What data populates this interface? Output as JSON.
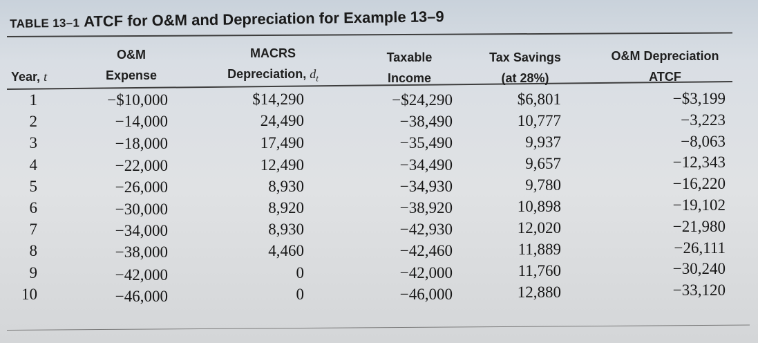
{
  "table": {
    "label": "TABLE 13–1",
    "title": "ATCF for O&M and Depreciation for Example 13–9",
    "headers": {
      "year": {
        "line1": "Year, ",
        "var": "t"
      },
      "om": {
        "line1": "O&M",
        "line2": "Expense"
      },
      "macrs": {
        "line1": "MACRS",
        "line2": "Depreciation, ",
        "var": "d",
        "sub": "t"
      },
      "taxable": {
        "line1": "Taxable",
        "line2": "Income"
      },
      "taxsav": {
        "line1": "Tax Savings",
        "line2": "(at 28%)"
      },
      "atcf": {
        "line1": "O&M Depreciation",
        "line2": "ATCF"
      }
    },
    "rows": [
      {
        "year": "1",
        "om": "−$10,000",
        "dep": "$14,290",
        "ti": "−$24,290",
        "ts": "$6,801",
        "atcf": "−$3,199"
      },
      {
        "year": "2",
        "om": "−14,000",
        "dep": "24,490",
        "ti": "−38,490",
        "ts": "10,777",
        "atcf": "−3,223"
      },
      {
        "year": "3",
        "om": "−18,000",
        "dep": "17,490",
        "ti": "−35,490",
        "ts": "9,937",
        "atcf": "−8,063"
      },
      {
        "year": "4",
        "om": "−22,000",
        "dep": "12,490",
        "ti": "−34,490",
        "ts": "9,657",
        "atcf": "−12,343"
      },
      {
        "year": "5",
        "om": "−26,000",
        "dep": "8,930",
        "ti": "−34,930",
        "ts": "9,780",
        "atcf": "−16,220"
      },
      {
        "year": "6",
        "om": "−30,000",
        "dep": "8,920",
        "ti": "−38,920",
        "ts": "10,898",
        "atcf": "−19,102"
      },
      {
        "year": "7",
        "om": "−34,000",
        "dep": "8,930",
        "ti": "−42,930",
        "ts": "12,020",
        "atcf": "−21,980"
      },
      {
        "year": "8",
        "om": "−38,000",
        "dep": "4,460",
        "ti": "−42,460",
        "ts": "11,889",
        "atcf": "−26,111"
      },
      {
        "year": "9",
        "om": "−42,000",
        "dep": "0",
        "ti": "−42,000",
        "ts": "11,760",
        "atcf": "−30,240"
      },
      {
        "year": "10",
        "om": "−46,000",
        "dep": "0",
        "ti": "−46,000",
        "ts": "12,880",
        "atcf": "−33,120"
      }
    ]
  }
}
